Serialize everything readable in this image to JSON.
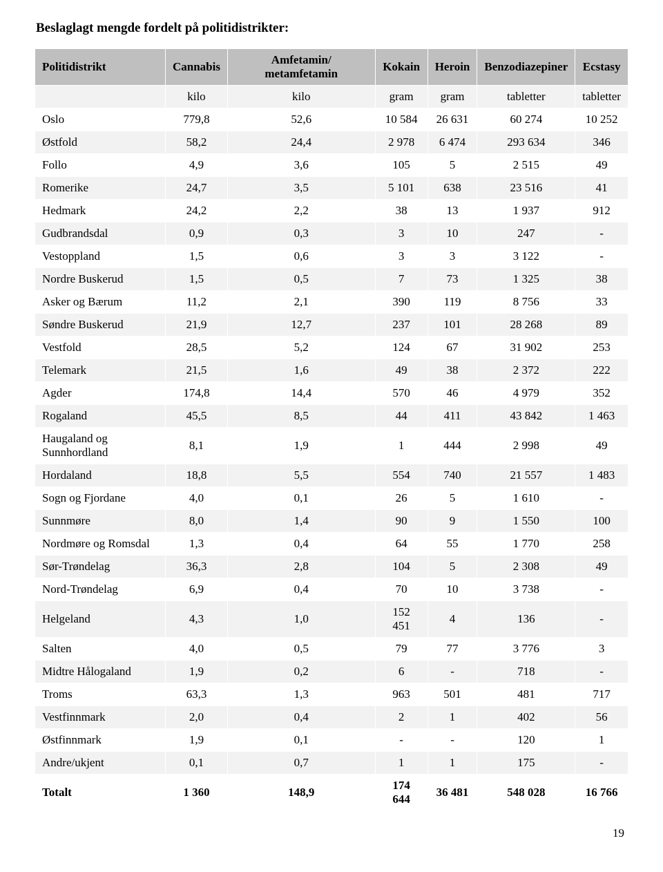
{
  "title": "Beslaglagt mengde fordelt på politidistrikter:",
  "page_number": "19",
  "table": {
    "columns": [
      "Politidistrikt",
      "Cannabis",
      "Amfetamin/ metamfetamin",
      "Kokain",
      "Heroin",
      "Benzodiazepiner",
      "Ecstasy"
    ],
    "units": [
      "",
      "kilo",
      "kilo",
      "gram",
      "gram",
      "tabletter",
      "tabletter"
    ],
    "rows": [
      [
        "Oslo",
        "779,8",
        "52,6",
        "10 584",
        "26 631",
        "60 274",
        "10 252"
      ],
      [
        "Østfold",
        "58,2",
        "24,4",
        "2 978",
        "6 474",
        "293 634",
        "346"
      ],
      [
        "Follo",
        "4,9",
        "3,6",
        "105",
        "5",
        "2 515",
        "49"
      ],
      [
        "Romerike",
        "24,7",
        "3,5",
        "5 101",
        "638",
        "23 516",
        "41"
      ],
      [
        "Hedmark",
        "24,2",
        "2,2",
        "38",
        "13",
        "1 937",
        "912"
      ],
      [
        "Gudbrandsdal",
        "0,9",
        "0,3",
        "3",
        "10",
        "247",
        "-"
      ],
      [
        "Vestoppland",
        "1,5",
        "0,6",
        "3",
        "3",
        "3 122",
        "-"
      ],
      [
        "Nordre Buskerud",
        "1,5",
        "0,5",
        "7",
        "73",
        "1 325",
        "38"
      ],
      [
        "Asker og Bærum",
        "11,2",
        "2,1",
        "390",
        "119",
        "8 756",
        "33"
      ],
      [
        "Søndre Buskerud",
        "21,9",
        "12,7",
        "237",
        "101",
        "28 268",
        "89"
      ],
      [
        "Vestfold",
        "28,5",
        "5,2",
        "124",
        "67",
        "31 902",
        "253"
      ],
      [
        "Telemark",
        "21,5",
        "1,6",
        "49",
        "38",
        "2 372",
        "222"
      ],
      [
        "Agder",
        "174,8",
        "14,4",
        "570",
        "46",
        "4 979",
        "352"
      ],
      [
        "Rogaland",
        "45,5",
        "8,5",
        "44",
        "411",
        "43 842",
        "1 463"
      ],
      [
        "Haugaland og Sunnhordland",
        "8,1",
        "1,9",
        "1",
        "444",
        "2 998",
        "49"
      ],
      [
        "Hordaland",
        "18,8",
        "5,5",
        "554",
        "740",
        "21 557",
        "1 483"
      ],
      [
        "Sogn og Fjordane",
        "4,0",
        "0,1",
        "26",
        "5",
        "1 610",
        "-"
      ],
      [
        "Sunnmøre",
        "8,0",
        "1,4",
        "90",
        "9",
        "1 550",
        "100"
      ],
      [
        "Nordmøre og Romsdal",
        "1,3",
        "0,4",
        "64",
        "55",
        "1 770",
        "258"
      ],
      [
        "Sør-Trøndelag",
        "36,3",
        "2,8",
        "104",
        "5",
        "2 308",
        "49"
      ],
      [
        "Nord-Trøndelag",
        "6,9",
        "0,4",
        "70",
        "10",
        "3 738",
        "-"
      ],
      [
        "Helgeland",
        "4,3",
        "1,0",
        "152 451",
        "4",
        "136",
        "-"
      ],
      [
        "Salten",
        "4,0",
        "0,5",
        "79",
        "77",
        "3 776",
        "3"
      ],
      [
        "Midtre Hålogaland",
        "1,9",
        "0,2",
        "6",
        "-",
        "718",
        "-"
      ],
      [
        "Troms",
        "63,3",
        "1,3",
        "963",
        "501",
        "481",
        "717"
      ],
      [
        "Vestfinnmark",
        "2,0",
        "0,4",
        "2",
        "1",
        "402",
        "56"
      ],
      [
        "Østfinnmark",
        "1,9",
        "0,1",
        "-",
        "-",
        "120",
        "1"
      ],
      [
        "Andre/ukjent",
        "0,1",
        "0,7",
        "1",
        "1",
        "175",
        "-"
      ]
    ],
    "total": [
      "Totalt",
      "1 360",
      "148,9",
      "174 644",
      "36 481",
      "548 028",
      "16 766"
    ]
  }
}
